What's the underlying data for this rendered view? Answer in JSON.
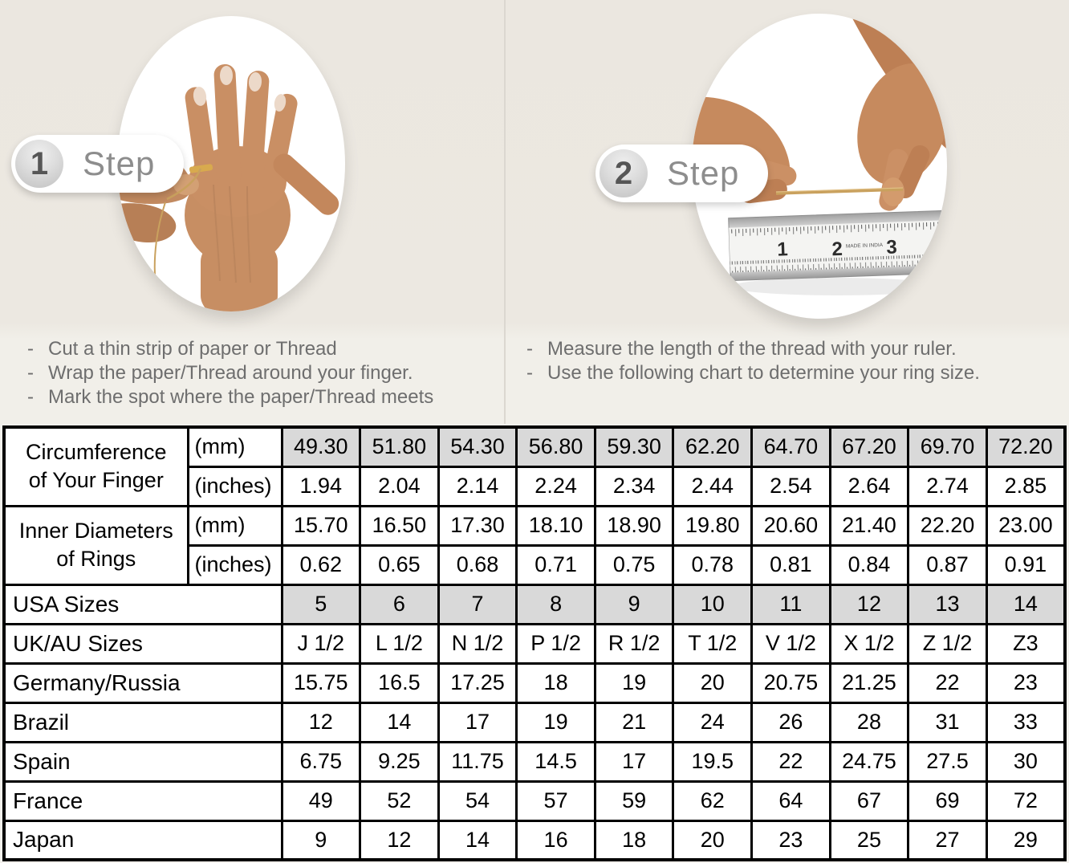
{
  "colors": {
    "background": "#ece8e1",
    "panel_divider": "#dbd7d0",
    "table_shaded_cell": "#d9d9d9",
    "table_border": "#000000",
    "instruction_text": "#6e6e6e",
    "badge_text": "#8d8d8d"
  },
  "bullet_marker": "-",
  "steps": [
    {
      "number": "1",
      "label": "Step",
      "bullets": [
        "Cut a thin strip of paper or Thread",
        "Wrap the paper/Thread around your finger.",
        "Mark the spot where the paper/Thread meets"
      ]
    },
    {
      "number": "2",
      "label": "Step",
      "bullets": [
        "Measure the length of the thread with your ruler.",
        "Use the following chart to determine your ring size."
      ],
      "ruler": {
        "numbers": [
          "1",
          "2",
          "3"
        ],
        "made_in": "MADE IN INDIA"
      }
    }
  ],
  "table": {
    "row_groups": [
      {
        "label": [
          "Circumference",
          "of Your Finger"
        ],
        "rows": [
          {
            "unit": "(mm)",
            "shaded": true,
            "values": [
              "49.30",
              "51.80",
              "54.30",
              "56.80",
              "59.30",
              "62.20",
              "64.70",
              "67.20",
              "69.70",
              "72.20"
            ]
          },
          {
            "unit": "(inches)",
            "shaded": false,
            "values": [
              "1.94",
              "2.04",
              "2.14",
              "2.24",
              "2.34",
              "2.44",
              "2.54",
              "2.64",
              "2.74",
              "2.85"
            ]
          }
        ]
      },
      {
        "label": [
          "Inner Diameters",
          "of Rings"
        ],
        "rows": [
          {
            "unit": "(mm)",
            "shaded": false,
            "values": [
              "15.70",
              "16.50",
              "17.30",
              "18.10",
              "18.90",
              "19.80",
              "20.60",
              "21.40",
              "22.20",
              "23.00"
            ]
          },
          {
            "unit": "(inches)",
            "shaded": false,
            "values": [
              "0.62",
              "0.65",
              "0.68",
              "0.71",
              "0.75",
              "0.78",
              "0.81",
              "0.84",
              "0.87",
              "0.91"
            ]
          }
        ]
      }
    ],
    "size_rows": [
      {
        "label": "USA Sizes",
        "shaded": true,
        "values": [
          "5",
          "6",
          "7",
          "8",
          "9",
          "10",
          "11",
          "12",
          "13",
          "14"
        ]
      },
      {
        "label": "UK/AU Sizes",
        "shaded": false,
        "values": [
          "J 1/2",
          "L 1/2",
          "N 1/2",
          "P 1/2",
          "R 1/2",
          "T 1/2",
          "V 1/2",
          "X 1/2",
          "Z 1/2",
          "Z3"
        ]
      },
      {
        "label": "Germany/Russia",
        "shaded": false,
        "values": [
          "15.75",
          "16.5",
          "17.25",
          "18",
          "19",
          "20",
          "20.75",
          "21.25",
          "22",
          "23"
        ]
      },
      {
        "label": "Brazil",
        "shaded": false,
        "values": [
          "12",
          "14",
          "17",
          "19",
          "21",
          "24",
          "26",
          "28",
          "31",
          "33"
        ]
      },
      {
        "label": "Spain",
        "shaded": false,
        "values": [
          "6.75",
          "9.25",
          "11.75",
          "14.5",
          "17",
          "19.5",
          "22",
          "24.75",
          "27.5",
          "30"
        ]
      },
      {
        "label": "France",
        "shaded": false,
        "values": [
          "49",
          "52",
          "54",
          "57",
          "59",
          "62",
          "64",
          "67",
          "69",
          "72"
        ]
      },
      {
        "label": "Japan",
        "shaded": false,
        "values": [
          "9",
          "12",
          "14",
          "16",
          "18",
          "20",
          "23",
          "25",
          "27",
          "29"
        ]
      }
    ]
  }
}
